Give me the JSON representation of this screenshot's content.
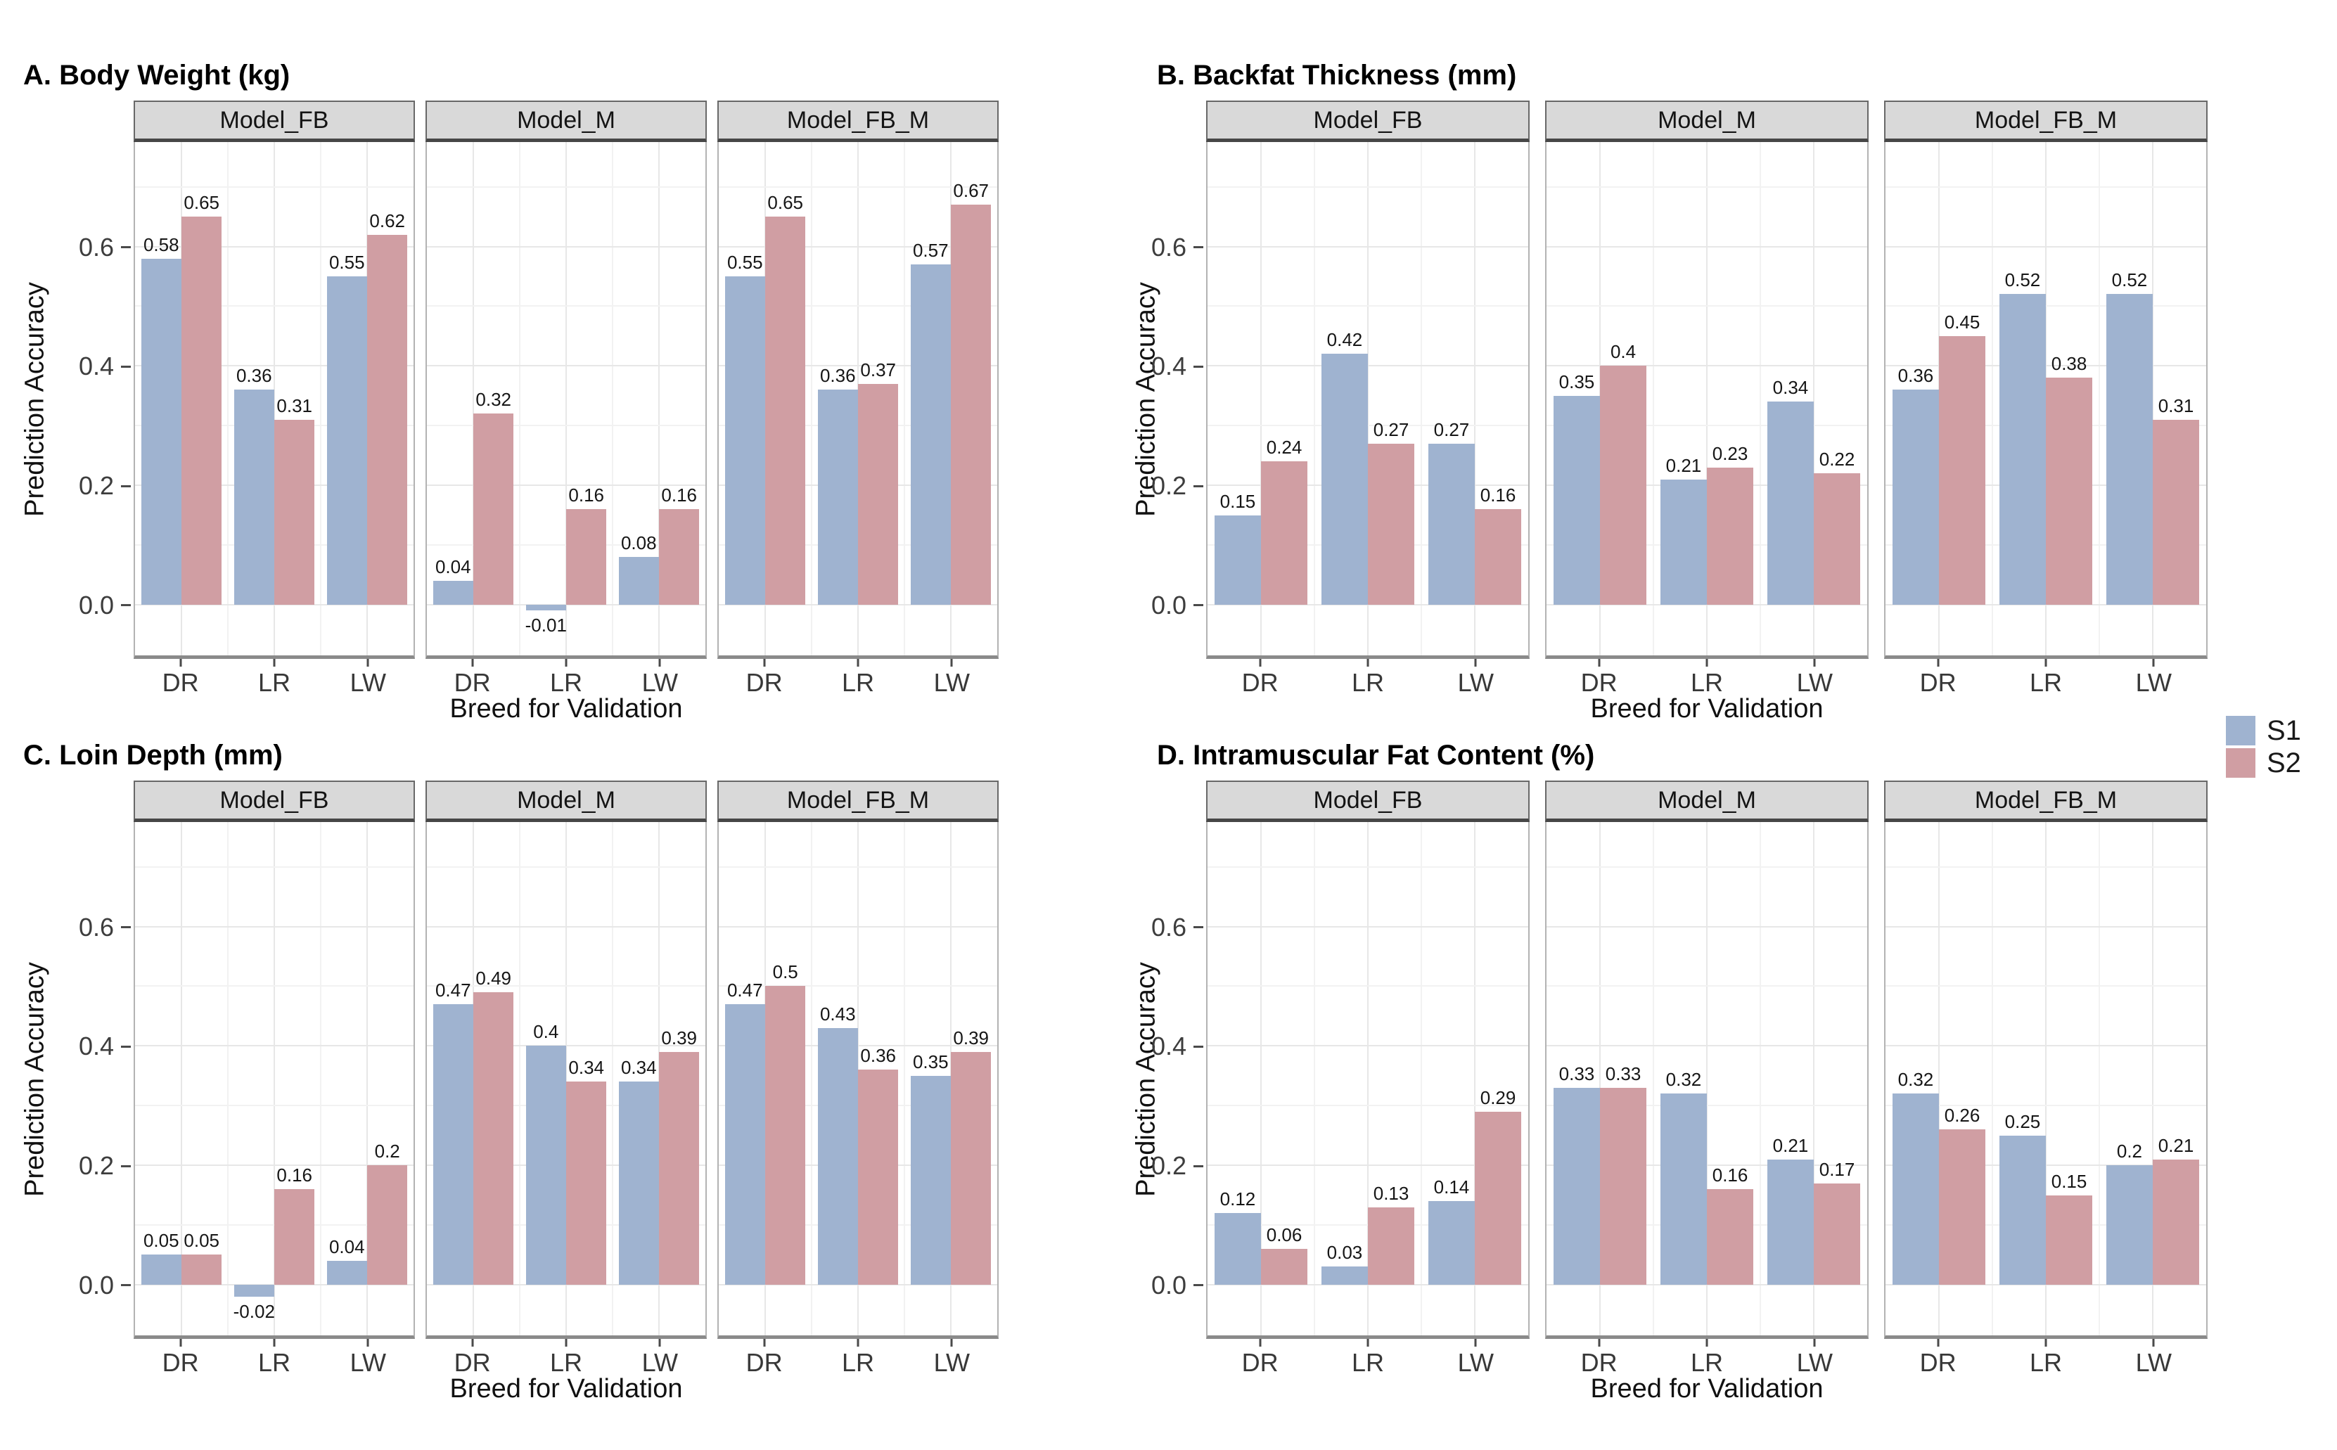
{
  "figure": {
    "background": "#ffffff",
    "description_visible_text_only": true
  },
  "axes": {
    "y_label": "Prediction Accuracy",
    "x_label": "Breed for Validation",
    "y_ticks": [
      {
        "label": "0.0",
        "value": 0.0
      },
      {
        "label": "0.2",
        "value": 0.2
      },
      {
        "label": "0.4",
        "value": 0.4
      },
      {
        "label": "0.6",
        "value": 0.6
      }
    ],
    "minor_gridlines": [
      0.1,
      0.3,
      0.5,
      0.7
    ],
    "ylim": [
      -0.085,
      0.775
    ],
    "categories": [
      "DR",
      "LR",
      "LW"
    ]
  },
  "facet_labels": [
    "Model_FB",
    "Model_M",
    "Model_FB_M"
  ],
  "legend": {
    "position": "right-middle",
    "items": [
      {
        "label": "S1",
        "color": "#9fb3d0"
      },
      {
        "label": "S2",
        "color": "#d09ea3"
      }
    ]
  },
  "style": {
    "strip_background": "#d9d9d9",
    "grid_major": "#e7e7e7",
    "grid_minor": "#f2f2f2",
    "bar_s1": "#9fb3d0",
    "bar_s2": "#d09ea3"
  },
  "chart_data": [
    {
      "id": "A",
      "type": "bar",
      "title": "A. Body Weight (kg)",
      "xlabel": "Breed for Validation",
      "ylabel": "Prediction Accuracy",
      "categories": [
        "DR",
        "LR",
        "LW"
      ],
      "ylim": [
        -0.085,
        0.775
      ],
      "legend_position": "right",
      "grid": true,
      "facets": [
        {
          "label": "Model_FB",
          "series": [
            {
              "name": "S1",
              "values": [
                0.58,
                0.36,
                0.55
              ]
            },
            {
              "name": "S2",
              "values": [
                0.65,
                0.31,
                0.62
              ]
            }
          ]
        },
        {
          "label": "Model_M",
          "series": [
            {
              "name": "S1",
              "values": [
                0.04,
                -0.01,
                0.08
              ]
            },
            {
              "name": "S2",
              "values": [
                0.32,
                0.16,
                0.16
              ]
            }
          ]
        },
        {
          "label": "Model_FB_M",
          "series": [
            {
              "name": "S1",
              "values": [
                0.55,
                0.36,
                0.57
              ]
            },
            {
              "name": "S2",
              "values": [
                0.65,
                0.37,
                0.67
              ]
            }
          ]
        }
      ]
    },
    {
      "id": "B",
      "type": "bar",
      "title": "B. Backfat Thickness (mm)",
      "xlabel": "Breed for Validation",
      "ylabel": "Prediction Accuracy",
      "categories": [
        "DR",
        "LR",
        "LW"
      ],
      "ylim": [
        -0.085,
        0.775
      ],
      "legend_position": "right",
      "grid": true,
      "facets": [
        {
          "label": "Model_FB",
          "series": [
            {
              "name": "S1",
              "values": [
                0.15,
                0.42,
                0.27
              ]
            },
            {
              "name": "S2",
              "values": [
                0.24,
                0.27,
                0.16
              ]
            }
          ]
        },
        {
          "label": "Model_M",
          "series": [
            {
              "name": "S1",
              "values": [
                0.35,
                0.21,
                0.34
              ]
            },
            {
              "name": "S2",
              "values": [
                0.4,
                0.23,
                0.22
              ]
            }
          ]
        },
        {
          "label": "Model_FB_M",
          "series": [
            {
              "name": "S1",
              "values": [
                0.36,
                0.52,
                0.52
              ]
            },
            {
              "name": "S2",
              "values": [
                0.45,
                0.38,
                0.31
              ]
            }
          ]
        }
      ]
    },
    {
      "id": "C",
      "type": "bar",
      "title": "C. Loin Depth (mm)",
      "xlabel": "Breed for Validation",
      "ylabel": "Prediction Accuracy",
      "categories": [
        "DR",
        "LR",
        "LW"
      ],
      "ylim": [
        -0.085,
        0.775
      ],
      "legend_position": "right",
      "grid": true,
      "facets": [
        {
          "label": "Model_FB",
          "series": [
            {
              "name": "S1",
              "values": [
                0.05,
                -0.02,
                0.04
              ]
            },
            {
              "name": "S2",
              "values": [
                0.05,
                0.16,
                0.2
              ]
            }
          ]
        },
        {
          "label": "Model_M",
          "series": [
            {
              "name": "S1",
              "values": [
                0.47,
                0.4,
                0.34
              ]
            },
            {
              "name": "S2",
              "values": [
                0.49,
                0.34,
                0.39
              ]
            }
          ]
        },
        {
          "label": "Model_FB_M",
          "series": [
            {
              "name": "S1",
              "values": [
                0.47,
                0.43,
                0.35
              ]
            },
            {
              "name": "S2",
              "values": [
                0.5,
                0.36,
                0.39
              ]
            }
          ]
        }
      ]
    },
    {
      "id": "D",
      "type": "bar",
      "title": "D. Intramuscular Fat Content (%)",
      "xlabel": "Breed for Validation",
      "ylabel": "Prediction Accuracy",
      "categories": [
        "DR",
        "LR",
        "LW"
      ],
      "ylim": [
        -0.085,
        0.775
      ],
      "legend_position": "right",
      "grid": true,
      "facets": [
        {
          "label": "Model_FB",
          "series": [
            {
              "name": "S1",
              "values": [
                0.12,
                0.03,
                0.14
              ]
            },
            {
              "name": "S2",
              "values": [
                0.06,
                0.13,
                0.29
              ]
            }
          ]
        },
        {
          "label": "Model_M",
          "series": [
            {
              "name": "S1",
              "values": [
                0.33,
                0.32,
                0.21
              ]
            },
            {
              "name": "S2",
              "values": [
                0.33,
                0.16,
                0.17
              ]
            }
          ]
        },
        {
          "label": "Model_FB_M",
          "series": [
            {
              "name": "S1",
              "values": [
                0.32,
                0.25,
                0.2
              ]
            },
            {
              "name": "S2",
              "values": [
                0.26,
                0.15,
                0.21
              ]
            }
          ]
        }
      ]
    }
  ]
}
